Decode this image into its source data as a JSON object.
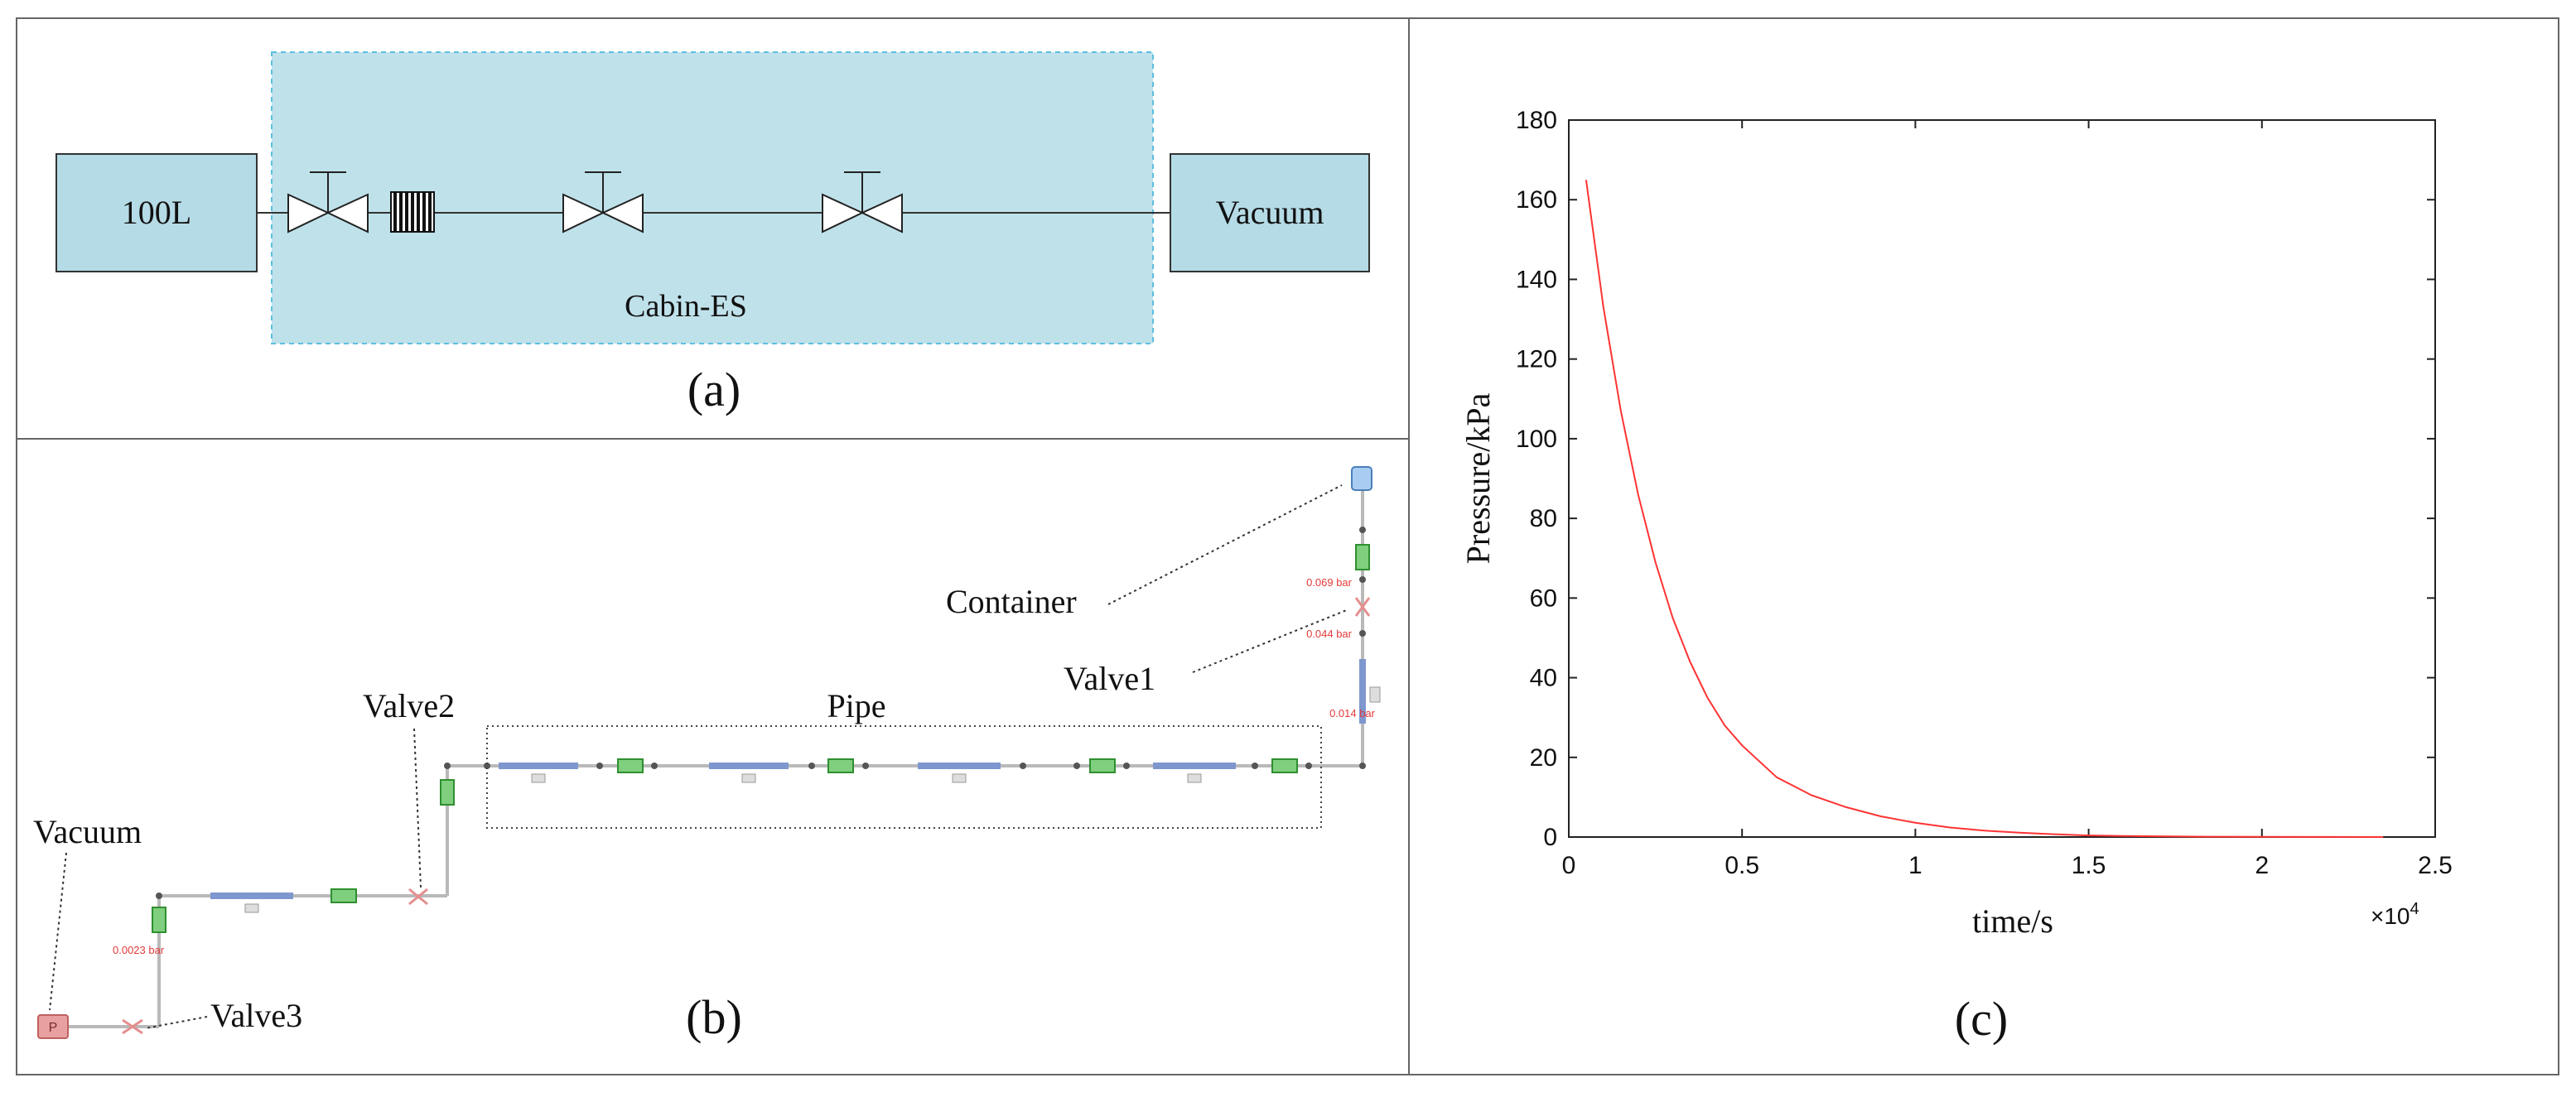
{
  "panel_a": {
    "caption": "(a)",
    "left_box_label": "100L",
    "right_box_label": "Vacuum",
    "cabin_label": "Cabin-ES",
    "colors": {
      "box_fill": "#b5dbe6",
      "cabin_fill": "#bfe1ea",
      "cabin_border": "#5cc0e0",
      "line": "#333333"
    }
  },
  "panel_b": {
    "caption": "(b)",
    "labels": {
      "container": "Container",
      "valve1": "Valve1",
      "pipe": "Pipe",
      "valve2": "Valve2",
      "vacuum": "Vacuum",
      "valve3": "Valve3"
    },
    "readouts": {
      "r1": "0.069 bar",
      "r2": "0.044 bar",
      "r3": "0.014 bar",
      "r4": "0.0023 bar"
    },
    "vacuum_symbol": "P"
  },
  "panel_c": {
    "caption": "(c)",
    "xlabel": "time/s",
    "ylabel": "Pressure/kPa",
    "x_exponent_prefix": "×10",
    "x_exponent_power": "4",
    "chart_data": {
      "type": "line",
      "xlim": [
        0,
        2.5
      ],
      "ylim": [
        0,
        180
      ],
      "x_ticks": [
        0,
        0.5,
        1,
        1.5,
        2,
        2.5
      ],
      "y_ticks": [
        0,
        20,
        40,
        60,
        80,
        100,
        120,
        140,
        160,
        180
      ],
      "x_tick_labels": [
        "0",
        "0.5",
        "1",
        "1.5",
        "2",
        "2.5"
      ],
      "y_tick_labels": [
        "0",
        "20",
        "40",
        "60",
        "80",
        "100",
        "120",
        "140",
        "160",
        "180"
      ],
      "x_multiplier": "1e4",
      "grid": false,
      "series": [
        {
          "color": "#ff3333",
          "x": [
            0.05,
            0.1,
            0.15,
            0.2,
            0.25,
            0.3,
            0.35,
            0.4,
            0.45,
            0.5,
            0.6,
            0.7,
            0.8,
            0.9,
            1.0,
            1.1,
            1.2,
            1.3,
            1.4,
            1.5,
            1.6,
            1.8,
            2.0,
            2.2,
            2.35
          ],
          "y": [
            165,
            133,
            107,
            86,
            69,
            55,
            44,
            35,
            28,
            23,
            15,
            10.5,
            7.5,
            5.2,
            3.6,
            2.4,
            1.6,
            1.1,
            0.7,
            0.4,
            0.25,
            0.1,
            0.05,
            0.02,
            0.01
          ]
        }
      ]
    }
  }
}
